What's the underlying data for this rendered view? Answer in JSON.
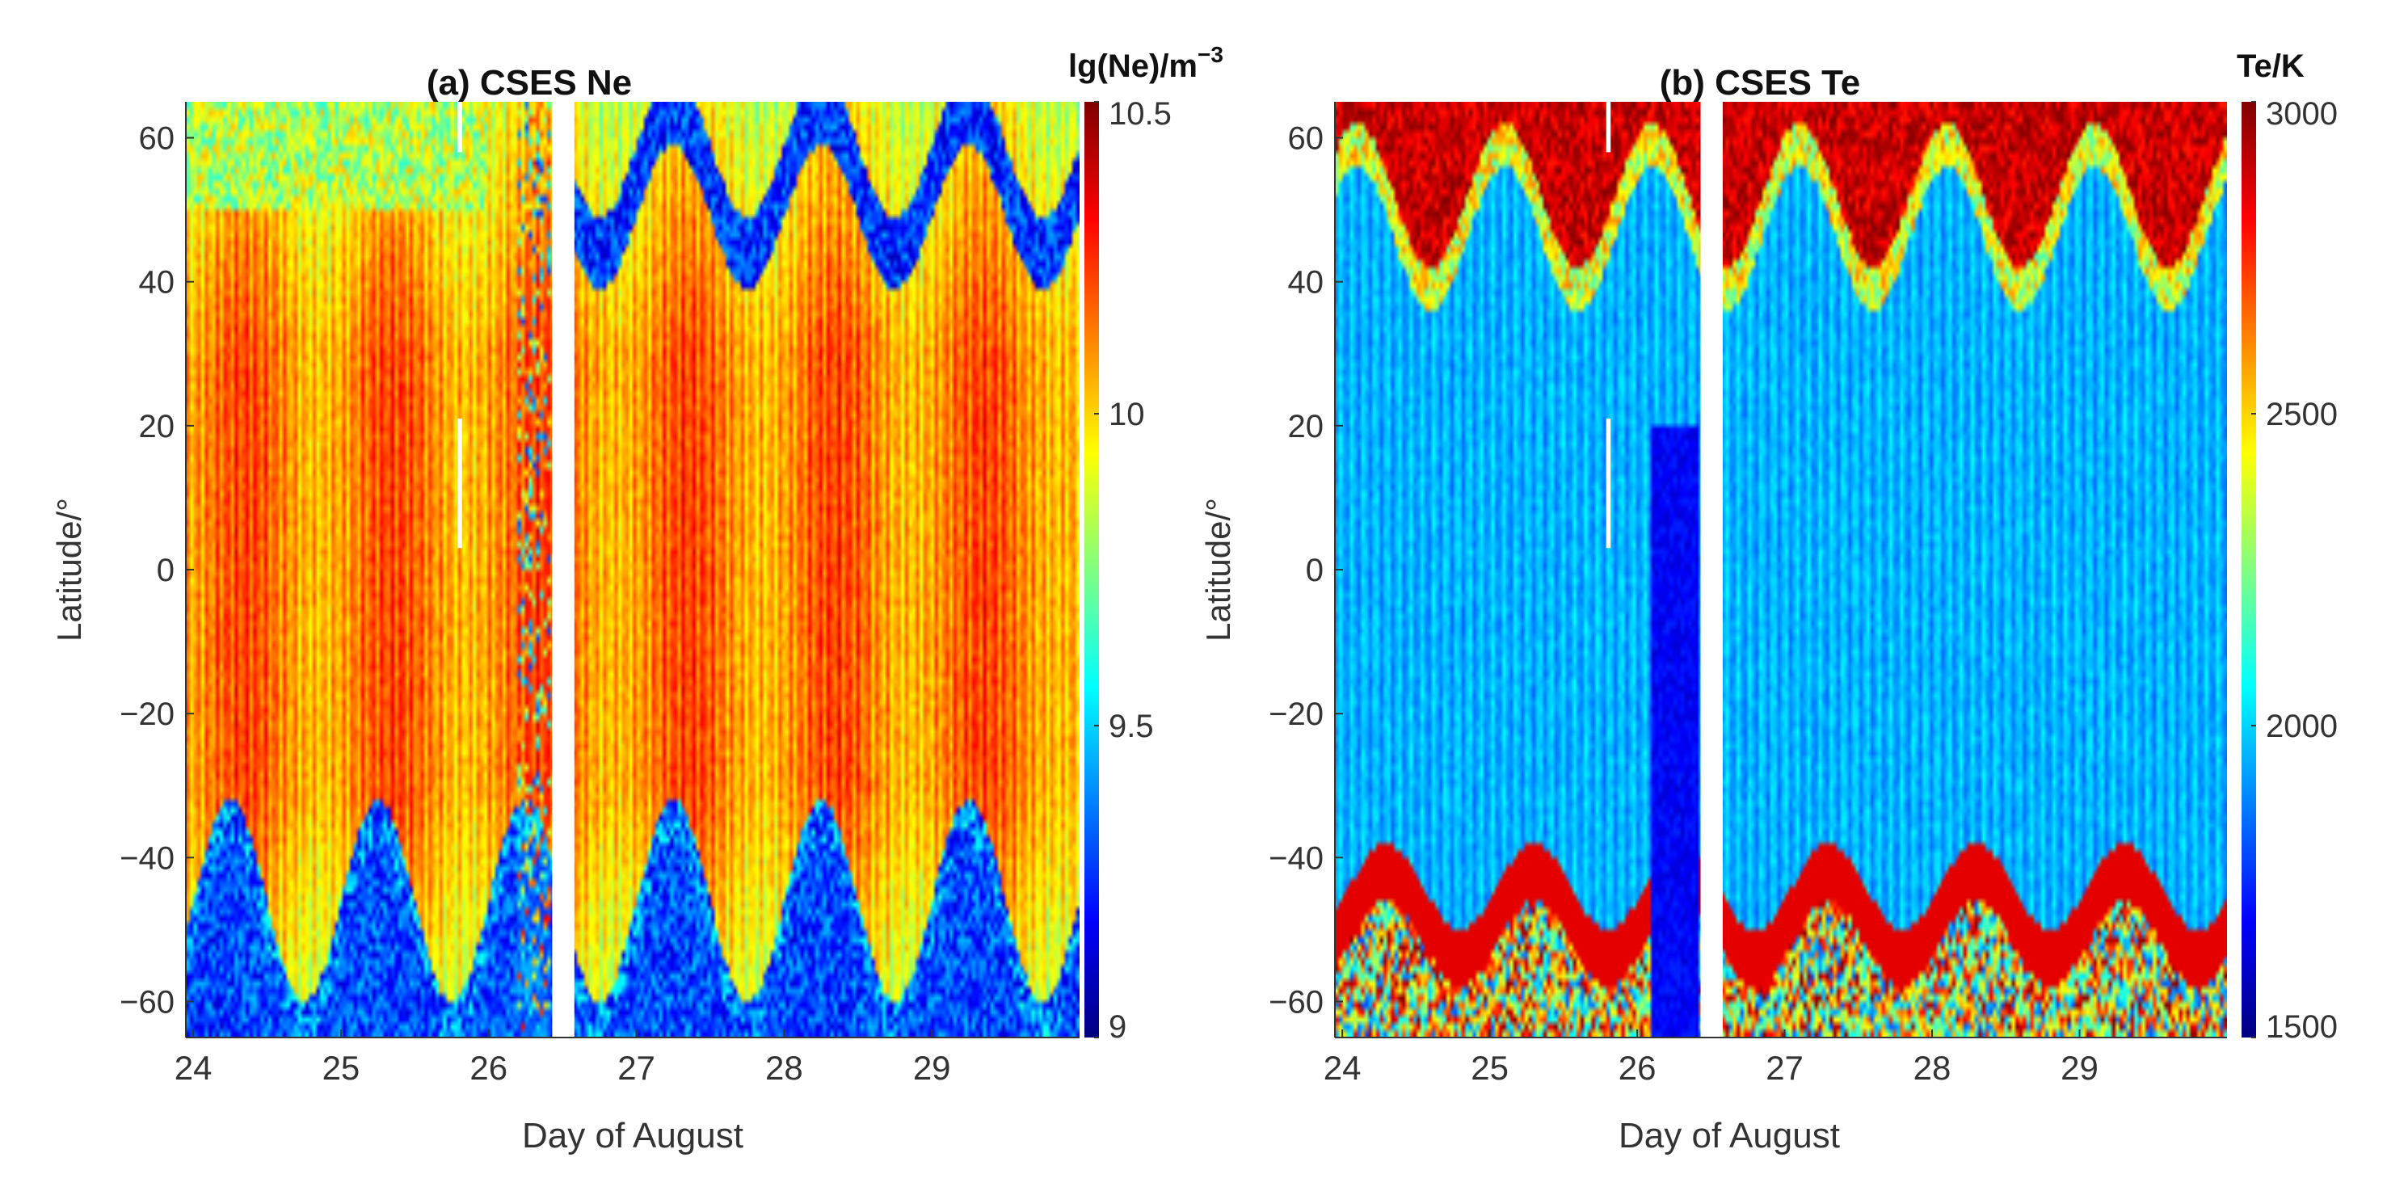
{
  "chart_data": [
    {
      "type": "heatmap",
      "panel_id": "a",
      "title": "(a) CSES Ne",
      "xlabel": "Day of August",
      "ylabel": "Latitude/°",
      "xlim": [
        23.95,
        30.0
      ],
      "ylim": [
        -65,
        65
      ],
      "x_ticks": [
        24,
        25,
        26,
        27,
        28,
        29
      ],
      "x_tick_labels": [
        "24",
        "25",
        "26",
        "27",
        "28",
        "29"
      ],
      "y_ticks": [
        -60,
        -40,
        -20,
        0,
        20,
        40,
        60
      ],
      "y_tick_labels": [
        "−60",
        "−40",
        "−20",
        "0",
        "20",
        "40",
        "60"
      ],
      "data_gaps": [
        {
          "day_start": 26.43,
          "day_end": 26.58,
          "lat_start": -65,
          "lat_end": 65
        },
        {
          "day_start": 25.79,
          "day_end": 25.82,
          "lat_start": 3,
          "lat_end": 21
        },
        {
          "day_start": 25.79,
          "day_end": 25.82,
          "lat_start": 58,
          "lat_end": 65
        }
      ],
      "colorbar": {
        "title_main": "lg(Ne)/m",
        "title_sup": "−3",
        "colormap": "jet",
        "range": [
          9,
          10.5
        ],
        "ticks": [
          9,
          9.5,
          10,
          10.5
        ],
        "tick_labels": [
          "9",
          "9.5",
          "10",
          "10.5"
        ]
      }
    },
    {
      "type": "heatmap",
      "panel_id": "b",
      "title": "(b) CSES Te",
      "xlabel": "Day of August",
      "ylabel": "Latitude/°",
      "xlim": [
        23.95,
        30.0
      ],
      "ylim": [
        -65,
        65
      ],
      "x_ticks": [
        24,
        25,
        26,
        27,
        28,
        29
      ],
      "x_tick_labels": [
        "24",
        "25",
        "26",
        "27",
        "28",
        "29"
      ],
      "y_ticks": [
        -60,
        -40,
        -20,
        0,
        20,
        40,
        60
      ],
      "y_tick_labels": [
        "−60",
        "−40",
        "−20",
        "0",
        "20",
        "40",
        "60"
      ],
      "data_gaps": [
        {
          "day_start": 26.43,
          "day_end": 26.58,
          "lat_start": -65,
          "lat_end": 65
        },
        {
          "day_start": 25.79,
          "day_end": 25.82,
          "lat_start": 3,
          "lat_end": 21
        },
        {
          "day_start": 25.79,
          "day_end": 25.82,
          "lat_start": 58,
          "lat_end": 65
        }
      ],
      "colorbar": {
        "title_main": "Te/K",
        "title_sup": "",
        "colormap": "jet",
        "range": [
          1500,
          3000
        ],
        "ticks": [
          1500,
          2000,
          2500,
          3000
        ],
        "tick_labels": [
          "1500",
          "2000",
          "2500",
          "3000"
        ]
      }
    }
  ]
}
